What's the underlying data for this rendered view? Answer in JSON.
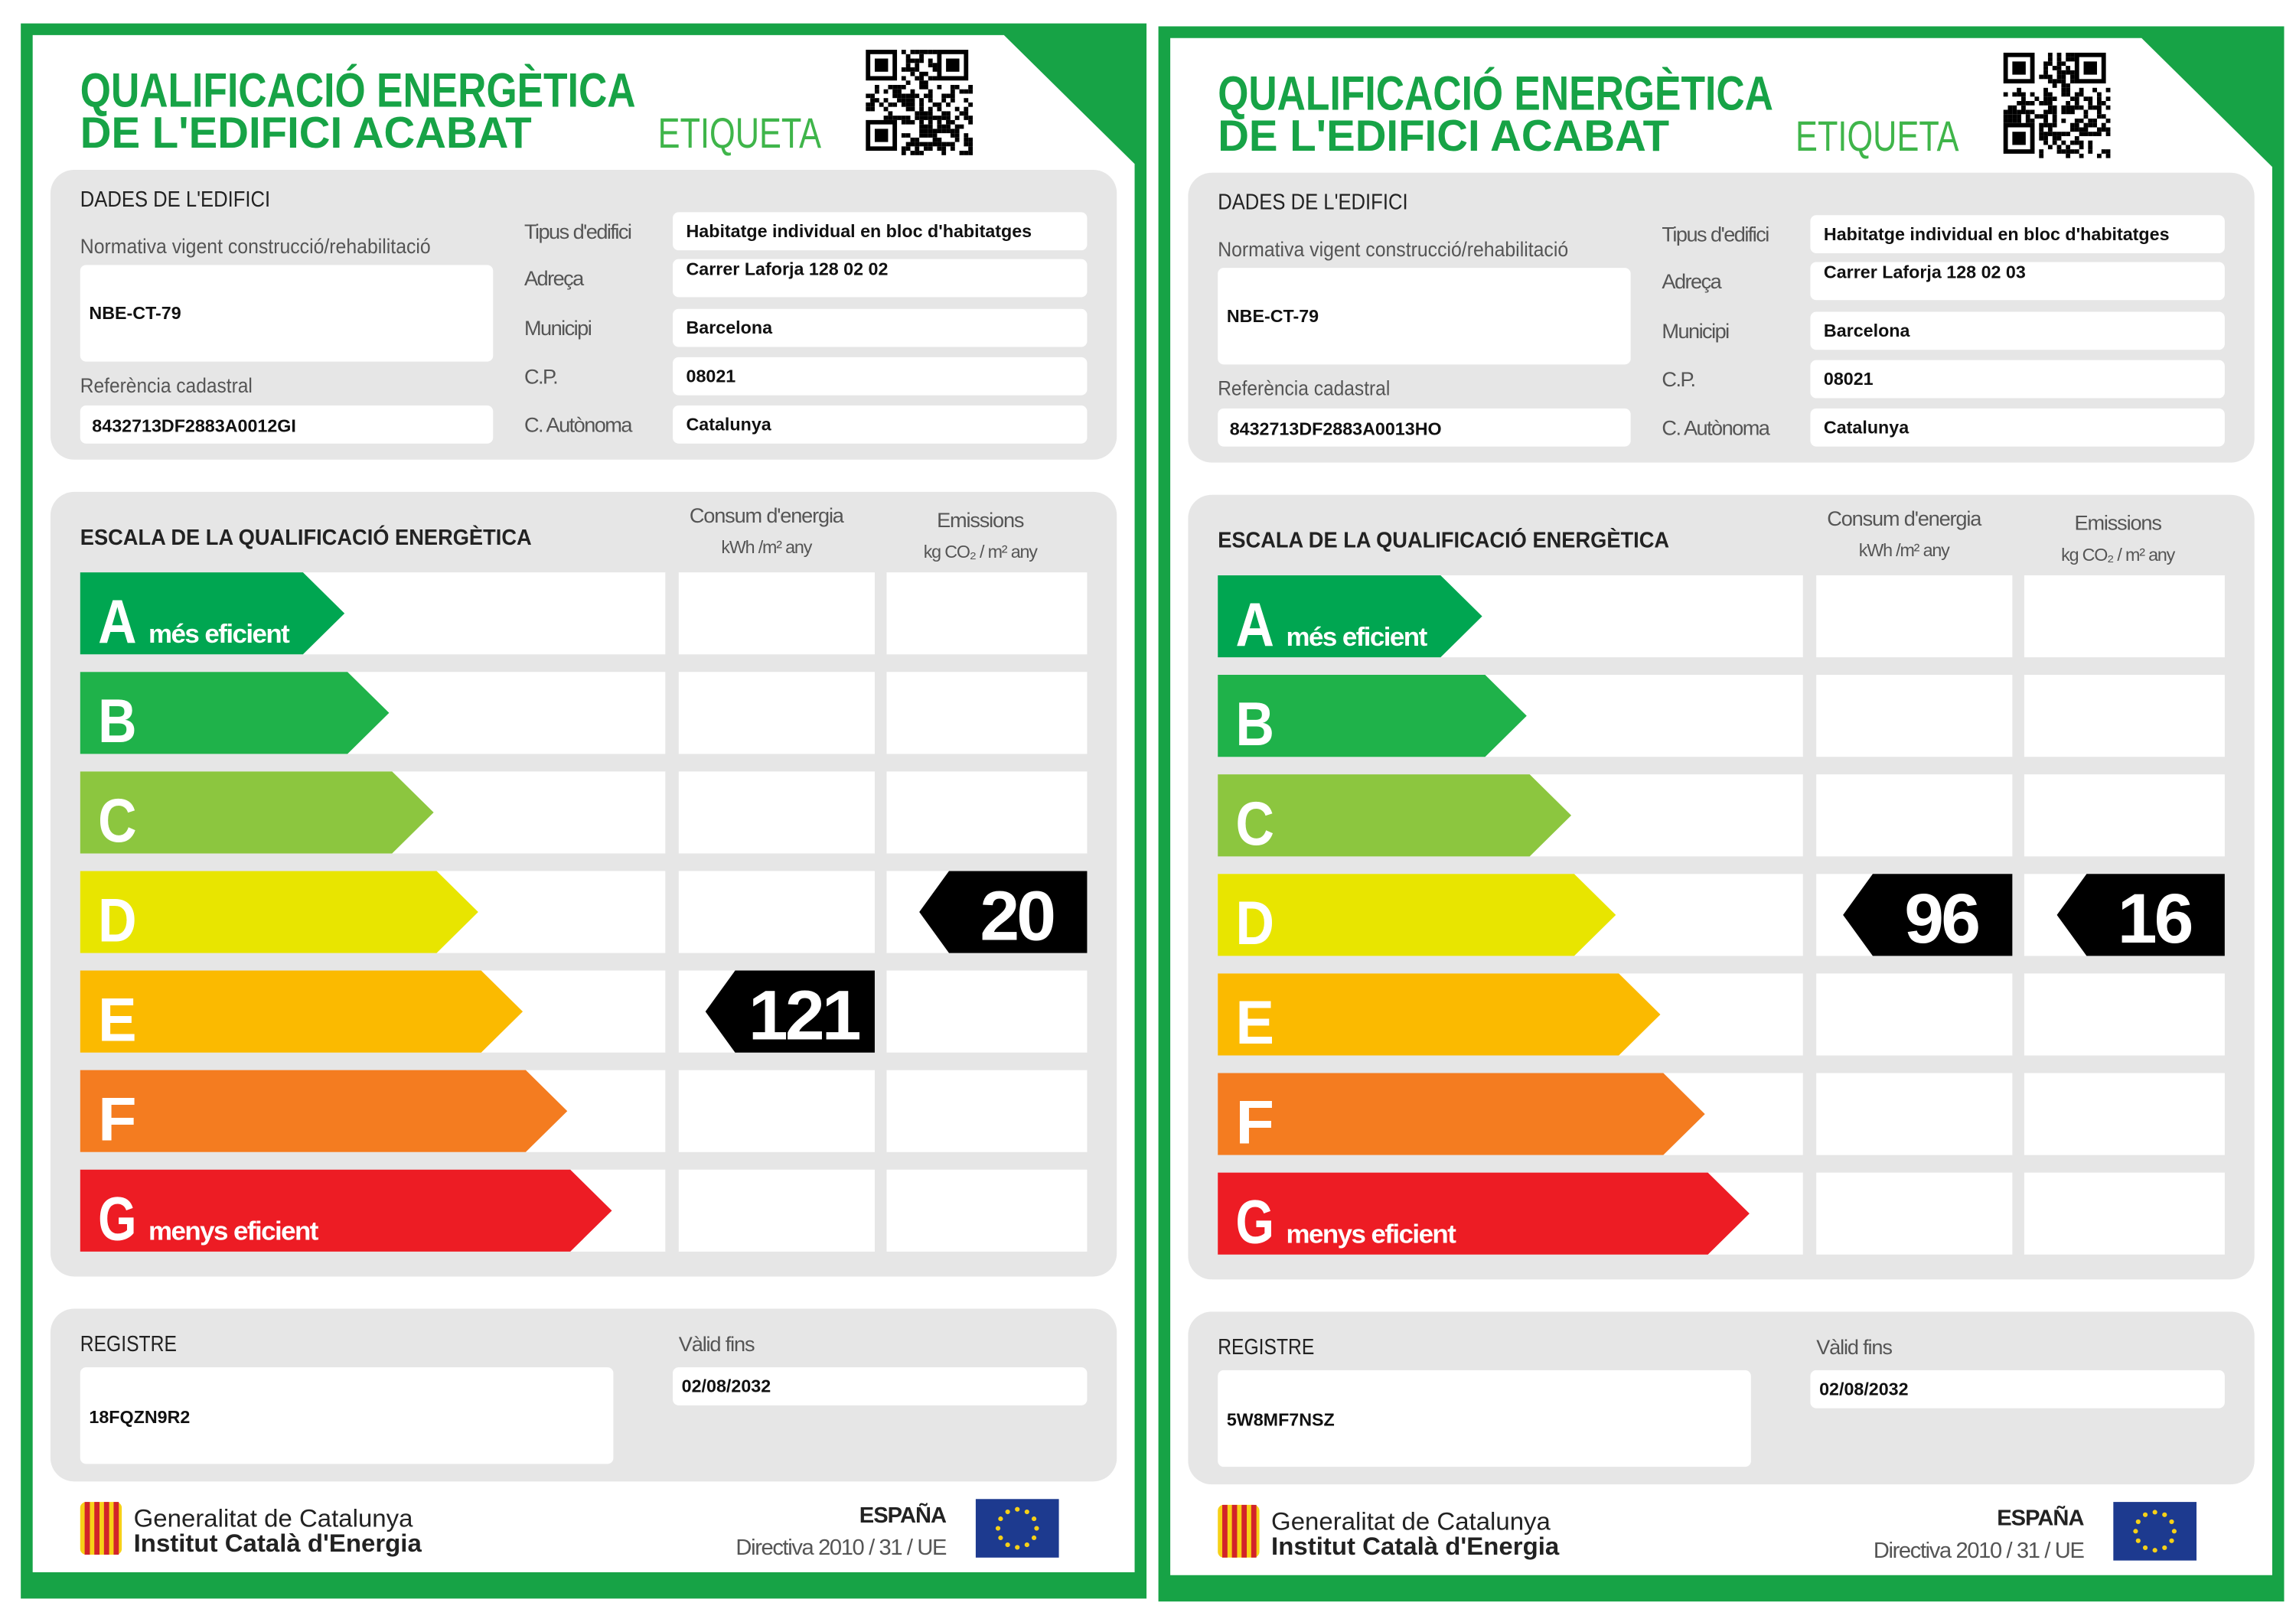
{
  "labels": [
    {
      "title_line1": "QUALIFICACIÓ ENERGÈTICA",
      "title_line2": "DE L'EDIFICI ACABAT",
      "tag": "ETIQUETA",
      "building_section": "DADES DE L'EDIFICI",
      "regulation_label": "Normativa vigent construcció/rehabilitació",
      "regulation": "NBE-CT-79",
      "cadastral_label": "Referència cadastral",
      "cadastral": "8432713DF2883A0012GI",
      "fields": [
        {
          "label": "Tipus d'edifici",
          "value": "Habitatge individual en bloc d'habitatges"
        },
        {
          "label": "Adreça",
          "value": "Carrer Laforja 128 02 02"
        },
        {
          "label": "Municipi",
          "value": "Barcelona"
        },
        {
          "label": "C.P.",
          "value": "08021"
        },
        {
          "label": "C. Autònoma",
          "value": "Catalunya"
        }
      ],
      "scale_title": "ESCALA DE LA QUALIFICACIÓ ENERGÈTICA",
      "consumption_header": "Consum d'energia",
      "consumption_unit": "kWh /m² any",
      "emissions_header": "Emissions",
      "emissions_unit": "kg CO₂ / m² any",
      "grades": [
        {
          "letter": "A",
          "note": "més eficient",
          "color": "#00a651"
        },
        {
          "letter": "B",
          "color": "#1fb24a"
        },
        {
          "letter": "C",
          "color": "#8cc63f"
        },
        {
          "letter": "D",
          "color": "#e8e500"
        },
        {
          "letter": "E",
          "color": "#fbba00"
        },
        {
          "letter": "F",
          "color": "#f47c20"
        },
        {
          "letter": "G",
          "note": "menys eficient",
          "color": "#ed1c24"
        }
      ],
      "consumption": {
        "value": 121,
        "grade": "E"
      },
      "emissions": {
        "value": 20,
        "grade": "D"
      },
      "register_label": "REGISTRE",
      "register": "18FQZN9R2",
      "valid_label": "Vàlid fins",
      "valid": "02/08/2032",
      "org1": "Generalitat de Catalunya",
      "org2": "Institut Català d'Energia",
      "country": "ESPAÑA",
      "directive": "Directiva 2010 / 31 / UE"
    },
    {
      "title_line1": "QUALIFICACIÓ ENERGÈTICA",
      "title_line2": "DE L'EDIFICI ACABAT",
      "tag": "ETIQUETA",
      "building_section": "DADES DE L'EDIFICI",
      "regulation_label": "Normativa vigent construcció/rehabilitació",
      "regulation": "NBE-CT-79",
      "cadastral_label": "Referència cadastral",
      "cadastral": "8432713DF2883A0013HO",
      "fields": [
        {
          "label": "Tipus d'edifici",
          "value": "Habitatge individual en bloc d'habitatges"
        },
        {
          "label": "Adreça",
          "value": "Carrer Laforja 128 02 03"
        },
        {
          "label": "Municipi",
          "value": "Barcelona"
        },
        {
          "label": "C.P.",
          "value": "08021"
        },
        {
          "label": "C. Autònoma",
          "value": "Catalunya"
        }
      ],
      "scale_title": "ESCALA DE LA QUALIFICACIÓ ENERGÈTICA",
      "consumption_header": "Consum d'energia",
      "consumption_unit": "kWh /m² any",
      "emissions_header": "Emissions",
      "emissions_unit": "kg CO₂ / m² any",
      "grades": [
        {
          "letter": "A",
          "note": "més eficient",
          "color": "#00a651"
        },
        {
          "letter": "B",
          "color": "#1fb24a"
        },
        {
          "letter": "C",
          "color": "#8cc63f"
        },
        {
          "letter": "D",
          "color": "#e8e500"
        },
        {
          "letter": "E",
          "color": "#fbba00"
        },
        {
          "letter": "F",
          "color": "#f47c20"
        },
        {
          "letter": "G",
          "note": "menys eficient",
          "color": "#ed1c24"
        }
      ],
      "consumption": {
        "value": 96,
        "grade": "D"
      },
      "emissions": {
        "value": 16,
        "grade": "D"
      },
      "register_label": "REGISTRE",
      "register": "5W8MF7NSZ",
      "valid_label": "Vàlid fins",
      "valid": "02/08/2032",
      "org1": "Generalitat de Catalunya",
      "org2": "Institut Català d'Energia",
      "country": "ESPAÑA",
      "directive": "Directiva 2010 / 31 / UE"
    }
  ]
}
